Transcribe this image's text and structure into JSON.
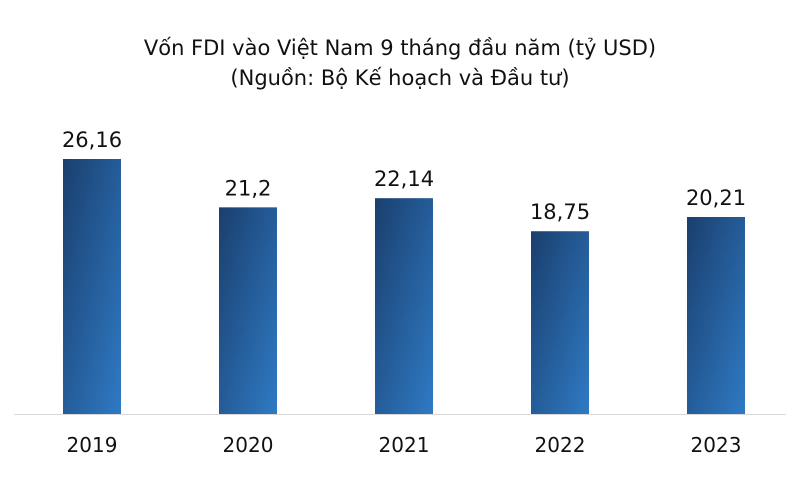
{
  "chart_data": {
    "type": "bar",
    "title": "Vốn FDI vào Việt Nam 9 tháng đầu năm (tỷ USD)",
    "subtitle": "(Nguồn: Bộ Kế hoạch và Đầu tư)",
    "categories": [
      "2019",
      "2020",
      "2021",
      "2022",
      "2023"
    ],
    "values": [
      26.16,
      21.2,
      22.14,
      18.75,
      20.21
    ],
    "value_labels": [
      "26,16",
      "21,2",
      "22,14",
      "18,75",
      "20,21"
    ],
    "ylim": [
      0,
      26.16
    ],
    "grid": false,
    "xlabel": "",
    "ylabel": "",
    "colors": {
      "bar_dark": "#1a3f6e",
      "bar_light": "#2f7ac4",
      "axis": "#d9d9d9"
    }
  }
}
